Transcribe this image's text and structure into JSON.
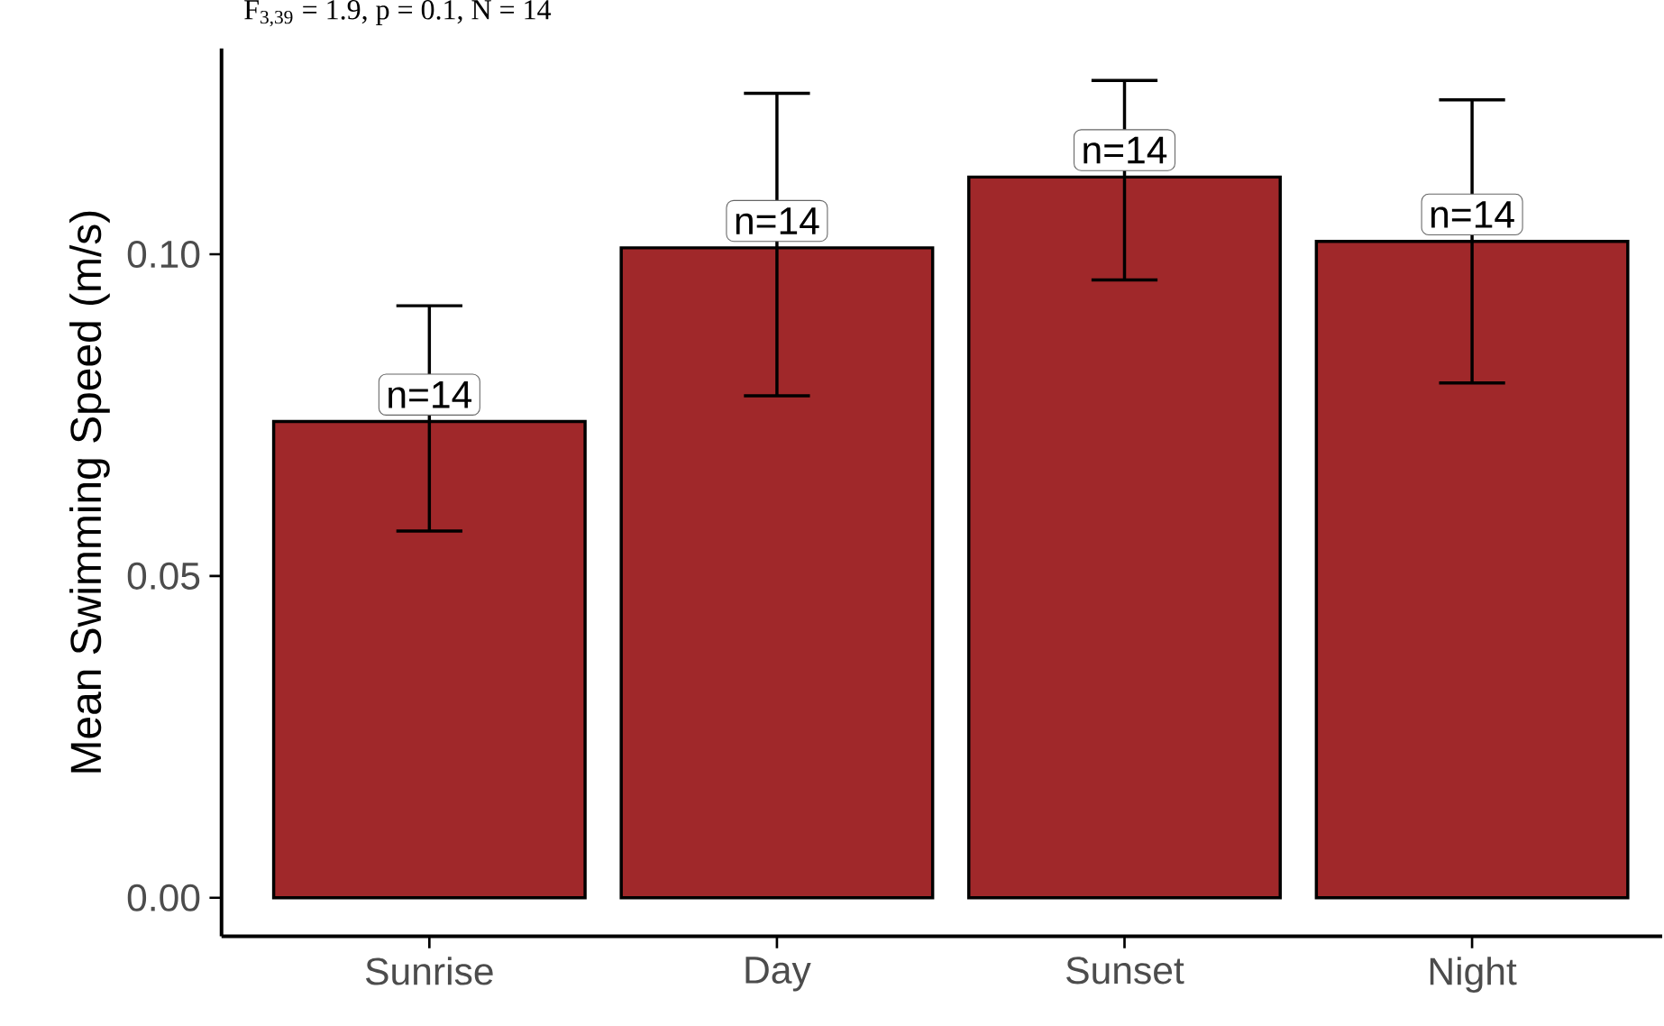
{
  "chart_data": {
    "type": "bar",
    "title": "F$_{3,39}$ = 1.9, p = 0.1, N = 14",
    "ylabel": "Mean Swimming Speed (m/s)",
    "categories": [
      "Sunrise",
      "Day",
      "Sunset",
      "Night"
    ],
    "values": [
      0.074,
      0.101,
      0.112,
      0.102
    ],
    "color": "#a0282a",
    "errors": [
      [
        0.057,
        0.092
      ],
      [
        0.078,
        0.125
      ],
      [
        0.096,
        0.127
      ],
      [
        0.08,
        0.124
      ]
    ],
    "ylim": [
      -0.006,
      0.132
    ],
    "yticks": [
      {
        "value": 0,
        "label": "0.00"
      },
      {
        "value": 0.05,
        "label": "0.05"
      },
      {
        "value": 0.1,
        "label": "0.10"
      }
    ],
    "annotations": [
      {
        "text": "n=14",
        "x": "Sunrise",
        "y": 0.074
      },
      {
        "text": "n=14",
        "x": "Day",
        "y": 0.101
      },
      {
        "text": "n=14",
        "x": "Sunset",
        "y": 0.112
      },
      {
        "text": "n=14",
        "x": "Night",
        "y": 0.102
      }
    ],
    "grid": false
  }
}
